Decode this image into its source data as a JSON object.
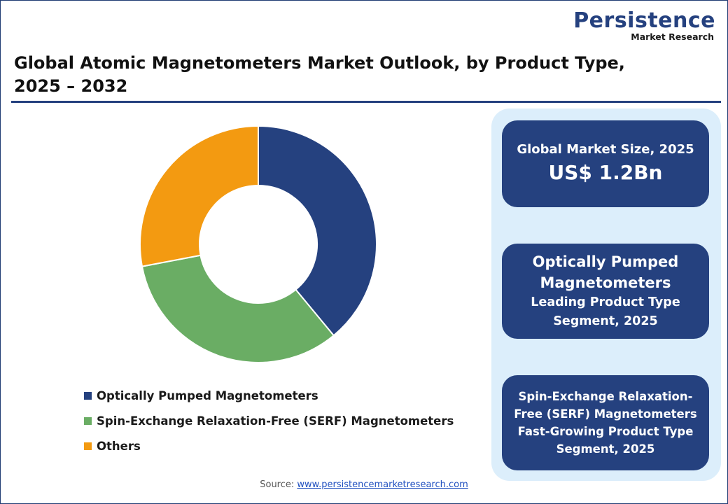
{
  "logo": {
    "main": "Persistence",
    "sub": "Market Research"
  },
  "title_line1": "Global Atomic Magnetometers Market Outlook, by Product Type,",
  "title_line2": "2025 – 2032",
  "chart_data": {
    "type": "pie",
    "donut": true,
    "title": "Global Atomic Magnetometers Market Outlook, by Product Type, 2025 – 2032",
    "categories": [
      "Optically Pumped Magnetometers",
      "Spin-Exchange Relaxation-Free (SERF) Magnetometers",
      "Others"
    ],
    "values": [
      39,
      33,
      28
    ],
    "colors": [
      "#25417f",
      "#6aad64",
      "#f39a11"
    ],
    "legend_position": "bottom-left"
  },
  "cards": {
    "market_size": {
      "label": "Global Market Size, 2025",
      "value": "US$ 1.2Bn"
    },
    "leading": {
      "head_line1": "Optically Pumped",
      "head_line2": "Magnetometers",
      "sub_line1": "Leading Product Type",
      "sub_line2": "Segment, 2025"
    },
    "growing": {
      "line1": "Spin-Exchange Relaxation-",
      "line2": "Free (SERF) Magnetometers",
      "line3": "Fast-Growing Product Type",
      "line4": "Segment, 2025"
    }
  },
  "source": {
    "label": "Source: ",
    "link": "www.persistencemarketresearch.com"
  }
}
